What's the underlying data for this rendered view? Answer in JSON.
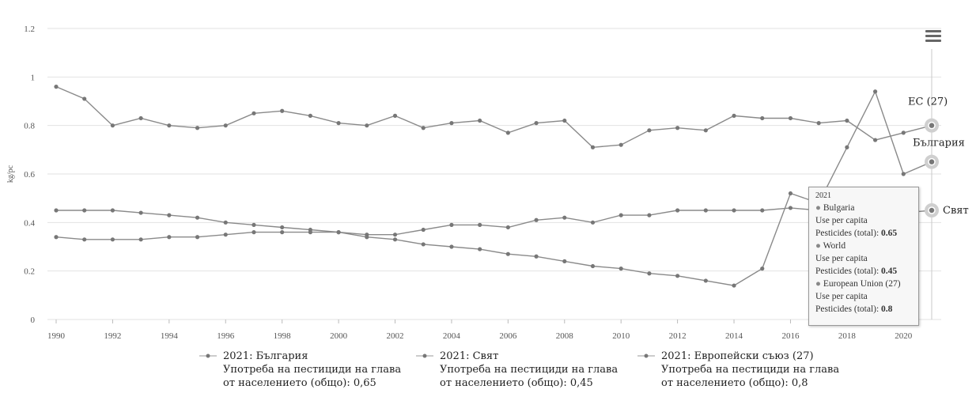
{
  "chart_data": {
    "type": "line",
    "ylabel": "kg/pc",
    "ylim": [
      0,
      1.2
    ],
    "yticks": [
      "0",
      "0.2",
      "0.4",
      "0.6",
      "0.8",
      "1",
      "1.2"
    ],
    "xlim": [
      1990,
      2021
    ],
    "xticks": [
      "1990",
      "1992",
      "1994",
      "1996",
      "1998",
      "2000",
      "2002",
      "2004",
      "2006",
      "2008",
      "2010",
      "2012",
      "2014",
      "2016",
      "2018",
      "2020"
    ],
    "x": [
      1990,
      1991,
      1992,
      1993,
      1994,
      1995,
      1996,
      1997,
      1998,
      1999,
      2000,
      2001,
      2002,
      2003,
      2004,
      2005,
      2006,
      2007,
      2008,
      2009,
      2010,
      2011,
      2012,
      2013,
      2014,
      2015,
      2016,
      2017,
      2018,
      2019,
      2020,
      2021
    ],
    "series": [
      {
        "name": "ЕС (27)",
        "values": [
          0.96,
          0.91,
          0.8,
          0.83,
          0.8,
          0.79,
          0.8,
          0.85,
          0.86,
          0.84,
          0.81,
          0.8,
          0.84,
          0.79,
          0.81,
          0.82,
          0.77,
          0.81,
          0.82,
          0.71,
          0.72,
          0.78,
          0.79,
          0.78,
          0.84,
          0.83,
          0.83,
          0.81,
          0.82,
          0.74,
          0.77,
          0.8
        ]
      },
      {
        "name": "България",
        "values": [
          0.34,
          0.33,
          0.33,
          0.33,
          0.34,
          0.34,
          0.35,
          0.36,
          0.36,
          0.36,
          0.36,
          0.34,
          0.33,
          0.31,
          0.3,
          0.29,
          0.27,
          0.26,
          0.24,
          0.22,
          0.21,
          0.19,
          0.18,
          0.16,
          0.14,
          0.21,
          0.52,
          0.48,
          0.71,
          0.94,
          0.6,
          0.65
        ]
      },
      {
        "name": "Свят",
        "values": [
          0.45,
          0.45,
          0.45,
          0.44,
          0.43,
          0.42,
          0.4,
          0.39,
          0.38,
          0.37,
          0.36,
          0.35,
          0.35,
          0.37,
          0.39,
          0.39,
          0.38,
          0.41,
          0.42,
          0.4,
          0.43,
          0.43,
          0.45,
          0.45,
          0.45,
          0.45,
          0.46,
          0.45,
          0.44,
          0.44,
          0.44,
          0.45
        ]
      }
    ],
    "colors": {
      "line": "#8a8a8a",
      "point": "#777777",
      "grid": "#e2e2e2"
    }
  },
  "tooltip": {
    "year": "2021",
    "entries": [
      {
        "series": "Bulgaria",
        "line1": "Use per capita",
        "line2": "Pesticides (total): ",
        "value": "0.65"
      },
      {
        "series": "World",
        "line1": "Use per capita",
        "line2": "Pesticides (total): ",
        "value": "0.45"
      },
      {
        "series": "European Union (27)",
        "line1": "Use per capita",
        "line2": "Pesticides (total): ",
        "value": "0.8"
      }
    ]
  },
  "legend": [
    {
      "title": "2021: България",
      "line1": "Употреба на пестициди на глава",
      "line2": "от населението (общо): 0,65"
    },
    {
      "title": "2021: Свят",
      "line1": "Употреба на пестициди на глава",
      "line2": " от населението (общо): 0,45"
    },
    {
      "title": "2021: Европейски съюз (27)",
      "line1": "Употреба на пестициди на глава",
      "line2": "от населението (общо): 0,8"
    }
  ],
  "menu": {
    "icon": "hamburger-menu-icon"
  }
}
